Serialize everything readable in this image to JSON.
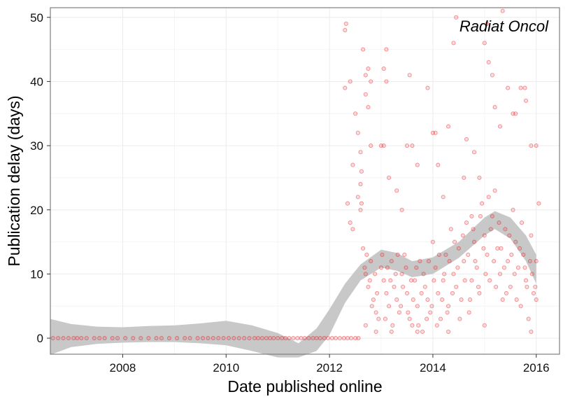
{
  "chart_data": {
    "type": "scatter",
    "title": "",
    "annotation": "Radiat Oncol",
    "xlabel": "Date published online",
    "ylabel": "Publication delay (days)",
    "xlim": [
      2006.6,
      2016.45
    ],
    "ylim": [
      -2.5,
      51.5
    ],
    "x_ticks": [
      {
        "value": 2008,
        "label": "2008"
      },
      {
        "value": 2010,
        "label": "2010"
      },
      {
        "value": 2012,
        "label": "2012"
      },
      {
        "value": 2014,
        "label": "2014"
      },
      {
        "value": 2016,
        "label": "2016"
      }
    ],
    "y_ticks": [
      {
        "value": 0,
        "label": "0"
      },
      {
        "value": 10,
        "label": "10"
      },
      {
        "value": 20,
        "label": "20"
      },
      {
        "value": 30,
        "label": "30"
      },
      {
        "value": 40,
        "label": "40"
      },
      {
        "value": 50,
        "label": "50"
      }
    ],
    "grid": true,
    "colors": {
      "points": "#e8141b",
      "smooth_band": "#c8c8c8",
      "panel_border": "#7f7f7f",
      "grid": "#ececec"
    },
    "smooth_band": [
      {
        "x": 2006.6,
        "lower": -2.6,
        "upper": 3.0
      },
      {
        "x": 2007.0,
        "lower": -1.4,
        "upper": 2.2
      },
      {
        "x": 2007.5,
        "lower": -0.9,
        "upper": 1.8
      },
      {
        "x": 2008.0,
        "lower": -0.7,
        "upper": 1.7
      },
      {
        "x": 2008.5,
        "lower": -0.6,
        "upper": 1.9
      },
      {
        "x": 2009.0,
        "lower": -0.6,
        "upper": 2.0
      },
      {
        "x": 2009.5,
        "lower": -0.8,
        "upper": 2.3
      },
      {
        "x": 2010.0,
        "lower": -1.1,
        "upper": 2.7
      },
      {
        "x": 2010.5,
        "lower": -2.0,
        "upper": 2.0
      },
      {
        "x": 2011.0,
        "lower": -3.0,
        "upper": 0.8
      },
      {
        "x": 2011.4,
        "lower": -3.0,
        "upper": -0.8
      },
      {
        "x": 2011.75,
        "lower": -2.0,
        "upper": 1.5
      },
      {
        "x": 2012.0,
        "lower": 0.5,
        "upper": 4.5
      },
      {
        "x": 2012.3,
        "lower": 5.5,
        "upper": 8.5
      },
      {
        "x": 2012.6,
        "lower": 9.0,
        "upper": 11.5
      },
      {
        "x": 2013.0,
        "lower": 11.0,
        "upper": 13.8
      },
      {
        "x": 2013.3,
        "lower": 10.5,
        "upper": 13.3
      },
      {
        "x": 2013.6,
        "lower": 9.5,
        "upper": 12.0
      },
      {
        "x": 2014.0,
        "lower": 10.0,
        "upper": 12.6
      },
      {
        "x": 2014.5,
        "lower": 12.5,
        "upper": 15.0
      },
      {
        "x": 2015.0,
        "lower": 16.0,
        "upper": 18.8
      },
      {
        "x": 2015.2,
        "lower": 17.0,
        "upper": 19.8
      },
      {
        "x": 2015.5,
        "lower": 15.5,
        "upper": 18.8
      },
      {
        "x": 2015.8,
        "lower": 12.0,
        "upper": 16.0
      },
      {
        "x": 2016.0,
        "lower": 8.5,
        "upper": 13.0
      }
    ],
    "series": [
      {
        "points": [
          [
            2006.65,
            0
          ],
          [
            2006.75,
            0
          ],
          [
            2006.85,
            0
          ],
          [
            2006.95,
            0
          ],
          [
            2007.05,
            0
          ],
          [
            2007.12,
            0
          ],
          [
            2007.2,
            0
          ],
          [
            2007.3,
            0
          ],
          [
            2007.45,
            0
          ],
          [
            2007.55,
            0
          ],
          [
            2007.65,
            0
          ],
          [
            2007.8,
            0
          ],
          [
            2007.9,
            0
          ],
          [
            2008.05,
            0
          ],
          [
            2008.2,
            0
          ],
          [
            2008.35,
            0
          ],
          [
            2008.5,
            0
          ],
          [
            2008.65,
            0
          ],
          [
            2008.75,
            0
          ],
          [
            2008.9,
            0
          ],
          [
            2009.05,
            0
          ],
          [
            2009.2,
            0
          ],
          [
            2009.3,
            0
          ],
          [
            2009.45,
            0
          ],
          [
            2009.55,
            0
          ],
          [
            2009.65,
            0
          ],
          [
            2009.75,
            0
          ],
          [
            2009.85,
            0
          ],
          [
            2009.95,
            0
          ],
          [
            2010.05,
            0
          ],
          [
            2010.15,
            0
          ],
          [
            2010.25,
            0
          ],
          [
            2010.35,
            0
          ],
          [
            2010.45,
            0
          ],
          [
            2010.55,
            0
          ],
          [
            2010.62,
            0
          ],
          [
            2010.7,
            0
          ],
          [
            2010.78,
            0
          ],
          [
            2010.85,
            0
          ],
          [
            2010.92,
            0
          ],
          [
            2011.0,
            0
          ],
          [
            2011.08,
            0
          ],
          [
            2011.15,
            0
          ],
          [
            2011.22,
            0
          ],
          [
            2011.3,
            0
          ],
          [
            2011.38,
            0
          ],
          [
            2011.45,
            0
          ],
          [
            2011.52,
            0
          ],
          [
            2011.6,
            0
          ],
          [
            2011.68,
            0
          ],
          [
            2011.75,
            0
          ],
          [
            2011.82,
            0
          ],
          [
            2011.9,
            0
          ],
          [
            2011.97,
            0
          ],
          [
            2012.05,
            0
          ],
          [
            2012.12,
            0
          ],
          [
            2012.2,
            0
          ],
          [
            2012.28,
            0
          ],
          [
            2012.35,
            0
          ],
          [
            2012.42,
            0
          ],
          [
            2012.5,
            0
          ],
          [
            2012.56,
            0
          ],
          [
            2012.3,
            48
          ],
          [
            2012.32,
            49
          ],
          [
            2012.4,
            40
          ],
          [
            2012.3,
            39
          ],
          [
            2012.45,
            27
          ],
          [
            2012.5,
            35
          ],
          [
            2012.55,
            32
          ],
          [
            2012.6,
            29
          ],
          [
            2012.62,
            26
          ],
          [
            2012.6,
            20
          ],
          [
            2012.62,
            21
          ],
          [
            2012.35,
            21
          ],
          [
            2012.4,
            18
          ],
          [
            2012.45,
            17
          ],
          [
            2012.55,
            22
          ],
          [
            2012.65,
            45
          ],
          [
            2012.7,
            41
          ],
          [
            2012.75,
            42
          ],
          [
            2012.8,
            40
          ],
          [
            2012.7,
            38
          ],
          [
            2012.75,
            36
          ],
          [
            2012.6,
            24
          ],
          [
            2012.8,
            30
          ],
          [
            2013.05,
            42
          ],
          [
            2013.1,
            40
          ],
          [
            2013.1,
            45
          ],
          [
            2013.0,
            30
          ],
          [
            2013.05,
            30
          ],
          [
            2013.15,
            25
          ],
          [
            2013.3,
            23
          ],
          [
            2013.4,
            20
          ],
          [
            2013.5,
            30
          ],
          [
            2013.6,
            30
          ],
          [
            2013.55,
            41
          ],
          [
            2013.7,
            27
          ],
          [
            2013.9,
            39
          ],
          [
            2014.0,
            32
          ],
          [
            2014.05,
            32
          ],
          [
            2014.1,
            27
          ],
          [
            2014.2,
            22
          ],
          [
            2014.3,
            33
          ],
          [
            2014.45,
            50
          ],
          [
            2014.4,
            46
          ],
          [
            2014.6,
            25
          ],
          [
            2014.65,
            31
          ],
          [
            2014.8,
            29
          ],
          [
            2014.75,
            19
          ],
          [
            2014.9,
            25
          ],
          [
            2015.0,
            46
          ],
          [
            2015.05,
            49
          ],
          [
            2015.08,
            43
          ],
          [
            2015.15,
            41
          ],
          [
            2015.2,
            36
          ],
          [
            2015.3,
            33
          ],
          [
            2015.35,
            51
          ],
          [
            2015.45,
            39
          ],
          [
            2015.55,
            35
          ],
          [
            2015.6,
            35
          ],
          [
            2015.7,
            39
          ],
          [
            2015.78,
            39
          ],
          [
            2015.8,
            37
          ],
          [
            2015.9,
            30
          ],
          [
            2016.0,
            30
          ],
          [
            2016.05,
            21
          ],
          [
            2012.65,
            14
          ],
          [
            2012.7,
            10
          ],
          [
            2012.75,
            8
          ],
          [
            2012.8,
            12
          ],
          [
            2012.85,
            6
          ],
          [
            2012.9,
            4
          ],
          [
            2012.95,
            3
          ],
          [
            2013.0,
            11
          ],
          [
            2013.05,
            9
          ],
          [
            2013.1,
            7
          ],
          [
            2013.15,
            5
          ],
          [
            2013.2,
            12
          ],
          [
            2013.25,
            8
          ],
          [
            2013.3,
            6
          ],
          [
            2013.35,
            4
          ],
          [
            2013.4,
            10
          ],
          [
            2013.45,
            13
          ],
          [
            2013.5,
            7
          ],
          [
            2013.55,
            3
          ],
          [
            2013.6,
            2
          ],
          [
            2013.65,
            9
          ],
          [
            2013.7,
            5
          ],
          [
            2013.75,
            12
          ],
          [
            2013.8,
            1
          ],
          [
            2013.85,
            8
          ],
          [
            2013.9,
            6
          ],
          [
            2013.95,
            4
          ],
          [
            2014.0,
            15
          ],
          [
            2014.05,
            11
          ],
          [
            2014.1,
            7
          ],
          [
            2014.15,
            3
          ],
          [
            2014.2,
            9
          ],
          [
            2014.25,
            13
          ],
          [
            2014.3,
            5
          ],
          [
            2014.35,
            17
          ],
          [
            2014.4,
            10
          ],
          [
            2014.45,
            8
          ],
          [
            2014.5,
            14
          ],
          [
            2014.55,
            6
          ],
          [
            2014.6,
            12
          ],
          [
            2014.65,
            18
          ],
          [
            2014.7,
            4
          ],
          [
            2014.75,
            9
          ],
          [
            2014.8,
            15
          ],
          [
            2014.85,
            11
          ],
          [
            2014.9,
            7
          ],
          [
            2014.95,
            21
          ],
          [
            2015.0,
            16
          ],
          [
            2015.05,
            13
          ],
          [
            2015.1,
            9
          ],
          [
            2015.15,
            19
          ],
          [
            2015.2,
            23
          ],
          [
            2015.25,
            14
          ],
          [
            2015.3,
            10
          ],
          [
            2015.35,
            6
          ],
          [
            2015.4,
            17
          ],
          [
            2015.45,
            12
          ],
          [
            2015.5,
            8
          ],
          [
            2015.55,
            20
          ],
          [
            2015.6,
            15
          ],
          [
            2015.65,
            11
          ],
          [
            2015.7,
            5
          ],
          [
            2015.75,
            13
          ],
          [
            2015.8,
            9
          ],
          [
            2015.85,
            3
          ],
          [
            2015.9,
            16
          ],
          [
            2015.95,
            7
          ],
          [
            2016.0,
            12
          ],
          [
            2012.68,
            11
          ],
          [
            2012.72,
            13
          ],
          [
            2012.78,
            9
          ],
          [
            2012.82,
            5
          ],
          [
            2012.88,
            10
          ],
          [
            2012.92,
            7
          ],
          [
            2013.02,
            13
          ],
          [
            2013.08,
            3
          ],
          [
            2013.12,
            11
          ],
          [
            2013.18,
            9
          ],
          [
            2013.22,
            2
          ],
          [
            2013.28,
            10
          ],
          [
            2013.32,
            13
          ],
          [
            2013.38,
            5
          ],
          [
            2013.42,
            8
          ],
          [
            2013.48,
            11
          ],
          [
            2013.52,
            4
          ],
          [
            2013.58,
            9
          ],
          [
            2013.62,
            6
          ],
          [
            2013.68,
            11
          ],
          [
            2013.72,
            2
          ],
          [
            2013.78,
            7
          ],
          [
            2013.82,
            10
          ],
          [
            2013.88,
            3
          ],
          [
            2013.92,
            12
          ],
          [
            2013.98,
            5
          ],
          [
            2014.02,
            9
          ],
          [
            2014.08,
            2
          ],
          [
            2014.12,
            13
          ],
          [
            2014.18,
            6
          ],
          [
            2014.22,
            10
          ],
          [
            2014.28,
            4
          ],
          [
            2014.32,
            12
          ],
          [
            2014.38,
            7
          ],
          [
            2014.42,
            15
          ],
          [
            2014.48,
            11
          ],
          [
            2014.52,
            3
          ],
          [
            2014.58,
            16
          ],
          [
            2014.62,
            9
          ],
          [
            2014.68,
            13
          ],
          [
            2014.72,
            6
          ],
          [
            2014.78,
            17
          ],
          [
            2014.82,
            12
          ],
          [
            2014.88,
            8
          ],
          [
            2014.92,
            19
          ],
          [
            2014.98,
            14
          ],
          [
            2015.02,
            10
          ],
          [
            2015.08,
            22
          ],
          [
            2015.12,
            17
          ],
          [
            2015.18,
            12
          ],
          [
            2015.22,
            8
          ],
          [
            2015.28,
            18
          ],
          [
            2015.32,
            14
          ],
          [
            2015.38,
            11
          ],
          [
            2015.42,
            7
          ],
          [
            2015.48,
            16
          ],
          [
            2015.52,
            13
          ],
          [
            2015.58,
            10
          ],
          [
            2015.62,
            6
          ],
          [
            2015.68,
            14
          ],
          [
            2015.72,
            18
          ],
          [
            2015.78,
            11
          ],
          [
            2015.82,
            8
          ],
          [
            2015.88,
            12
          ],
          [
            2015.92,
            10
          ],
          [
            2015.98,
            8
          ],
          [
            2012.7,
            2
          ],
          [
            2012.9,
            1
          ],
          [
            2013.2,
            1
          ],
          [
            2013.7,
            1
          ],
          [
            2014.3,
            1
          ],
          [
            2015.0,
            2
          ],
          [
            2015.9,
            1
          ],
          [
            2016.0,
            6
          ]
        ]
      }
    ]
  }
}
